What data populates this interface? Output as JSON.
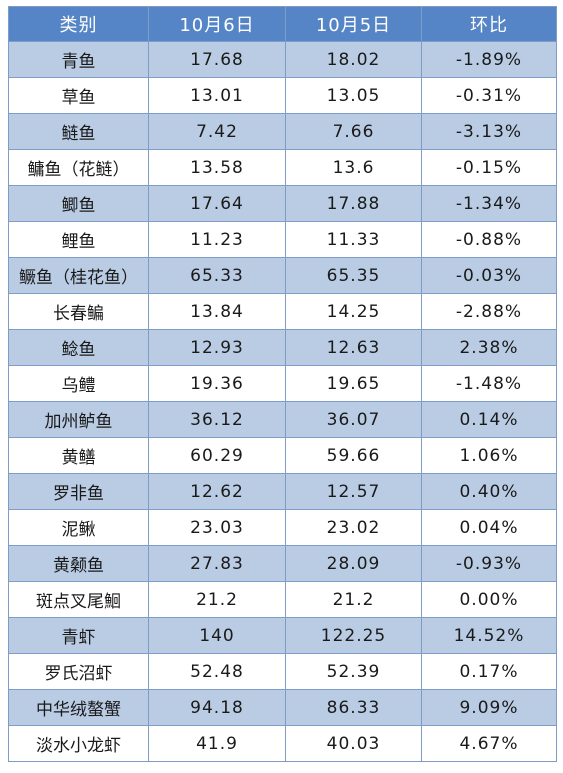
{
  "table": {
    "columns": [
      "类别",
      "10月6日",
      "10月5日",
      "环比"
    ],
    "rows": [
      [
        "青鱼",
        "17.68",
        "18.02",
        "-1.89%"
      ],
      [
        "草鱼",
        "13.01",
        "13.05",
        "-0.31%"
      ],
      [
        "鲢鱼",
        "7.42",
        "7.66",
        "-3.13%"
      ],
      [
        "鳙鱼（花鲢）",
        "13.58",
        "13.6",
        "-0.15%"
      ],
      [
        "鲫鱼",
        "17.64",
        "17.88",
        "-1.34%"
      ],
      [
        "鲤鱼",
        "11.23",
        "11.33",
        "-0.88%"
      ],
      [
        "鳜鱼（桂花鱼）",
        "65.33",
        "65.35",
        "-0.03%"
      ],
      [
        "长春鳊",
        "13.84",
        "14.25",
        "-2.88%"
      ],
      [
        "鲶鱼",
        "12.93",
        "12.63",
        "2.38%"
      ],
      [
        "乌鳢",
        "19.36",
        "19.65",
        "-1.48%"
      ],
      [
        "加州鲈鱼",
        "36.12",
        "36.07",
        "0.14%"
      ],
      [
        "黄鳝",
        "60.29",
        "59.66",
        "1.06%"
      ],
      [
        "罗非鱼",
        "12.62",
        "12.57",
        "0.40%"
      ],
      [
        "泥鳅",
        "23.03",
        "23.02",
        "0.04%"
      ],
      [
        "黄颡鱼",
        "27.83",
        "28.09",
        "-0.93%"
      ],
      [
        "斑点叉尾鮰",
        "21.2",
        "21.2",
        "0.00%"
      ],
      [
        "青虾",
        "140",
        "122.25",
        "14.52%"
      ],
      [
        "罗氏沼虾",
        "52.48",
        "52.39",
        "0.17%"
      ],
      [
        "中华绒螯蟹",
        "94.18",
        "86.33",
        "9.09%"
      ],
      [
        "淡水小龙虾",
        "41.9",
        "40.03",
        "4.67%"
      ]
    ]
  }
}
